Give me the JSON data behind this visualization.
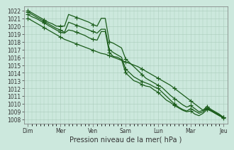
{
  "title": "",
  "xlabel": "Pression niveau de la mer( hPa )",
  "ylabel": "",
  "bg_color": "#cce8dd",
  "grid_color": "#aaccbb",
  "line_color": "#1a5c1a",
  "ylim": [
    1007.5,
    1022.5
  ],
  "yticks": [
    1008,
    1009,
    1010,
    1011,
    1012,
    1013,
    1014,
    1015,
    1016,
    1017,
    1018,
    1019,
    1020,
    1021,
    1022
  ],
  "xtick_labels": [
    "Dim",
    "Mer",
    "Ven",
    "Sam",
    "Lun",
    "Mar",
    "Jeu"
  ],
  "xtick_positions": [
    0,
    8,
    16,
    24,
    32,
    40,
    48
  ],
  "series": [
    [
      1021.5,
      1021.2,
      1021.0,
      1020.7,
      1020.4,
      1020.1,
      1019.8,
      1019.5,
      1019.2,
      1019.1,
      1019.5,
      1019.4,
      1019.2,
      1019.0,
      1018.8,
      1018.5,
      1018.3,
      1018.2,
      1019.3,
      1019.3,
      1016.6,
      1016.1,
      1016.0,
      1015.7,
      1014.0,
      1013.5,
      1013.0,
      1012.8,
      1012.5,
      1012.3,
      1012.2,
      1011.8,
      1011.5,
      1011.0,
      1010.5,
      1010.2,
      1009.8,
      1009.5,
      1009.2,
      1009.0,
      1009.1,
      1008.7,
      1008.5,
      1008.8,
      1009.3,
      1009.1,
      1008.8,
      1008.5,
      1008.3
    ],
    [
      1021.8,
      1021.5,
      1021.2,
      1020.9,
      1020.6,
      1020.3,
      1020.0,
      1019.7,
      1019.5,
      1019.2,
      1020.5,
      1020.3,
      1020.1,
      1019.9,
      1019.7,
      1019.5,
      1019.3,
      1019.1,
      1019.6,
      1019.6,
      1017.0,
      1016.6,
      1016.3,
      1016.0,
      1014.5,
      1014.0,
      1013.5,
      1013.2,
      1012.9,
      1012.7,
      1012.5,
      1012.2,
      1012.0,
      1011.5,
      1011.0,
      1010.5,
      1010.0,
      1009.6,
      1009.3,
      1009.1,
      1009.4,
      1009.1,
      1008.8,
      1009.0,
      1009.5,
      1009.2,
      1008.9,
      1008.6,
      1008.3
    ],
    [
      1022.0,
      1021.7,
      1021.4,
      1021.1,
      1020.8,
      1020.5,
      1020.3,
      1020.0,
      1020.0,
      1020.0,
      1021.5,
      1021.3,
      1021.1,
      1020.9,
      1020.7,
      1020.5,
      1020.2,
      1020.0,
      1021.0,
      1021.0,
      1018.0,
      1017.8,
      1017.5,
      1017.2,
      1015.8,
      1015.3,
      1014.8,
      1014.3,
      1013.8,
      1013.3,
      1013.0,
      1012.7,
      1012.4,
      1012.1,
      1011.6,
      1011.1,
      1010.7,
      1010.3,
      1009.9,
      1009.6,
      1009.8,
      1009.4,
      1009.0,
      1009.2,
      1009.7,
      1009.3,
      1009.0,
      1008.7,
      1008.3
    ],
    [
      1021.0,
      1020.7,
      1020.4,
      1020.1,
      1019.8,
      1019.5,
      1019.2,
      1018.9,
      1018.6,
      1018.3,
      1018.1,
      1017.9,
      1017.7,
      1017.5,
      1017.3,
      1017.1,
      1016.9,
      1016.7,
      1016.5,
      1016.4,
      1016.2,
      1016.0,
      1015.8,
      1015.6,
      1015.4,
      1015.2,
      1015.0,
      1014.8,
      1014.5,
      1014.2,
      1013.9,
      1013.6,
      1013.3,
      1013.0,
      1012.7,
      1012.4,
      1012.0,
      1011.6,
      1011.2,
      1010.8,
      1010.4,
      1010.0,
      1009.6,
      1009.2,
      1009.4,
      1009.1,
      1008.8,
      1008.5,
      1008.2
    ]
  ],
  "marker_step": 4,
  "marker_size": 2.5,
  "line_width": 0.9,
  "tick_fontsize": 5.5,
  "xlabel_fontsize": 7
}
